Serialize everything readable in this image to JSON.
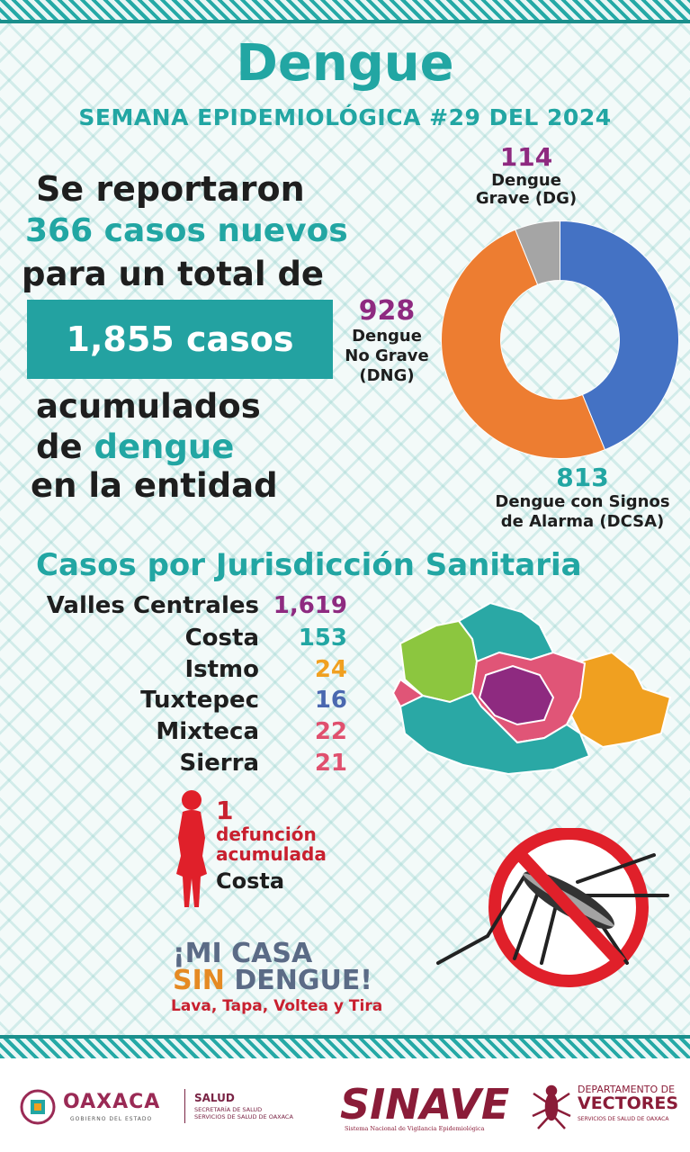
{
  "header": {
    "title": "Dengue",
    "subtitle": "SEMANA EPIDEMIOLÓGICA #29 DEL 2024"
  },
  "summary": {
    "line1": "Se reportaron",
    "line2": "366 casos nuevos",
    "line3": "para un total de",
    "total_box": "1,855 casos",
    "line4": "acumulados",
    "line5_a": "de ",
    "line5_b": "dengue",
    "line6": "en la entidad"
  },
  "chart_data": {
    "type": "pie",
    "style": "donut",
    "categories": [
      "Dengue con Signos de Alarma (DCSA)",
      "Dengue No Grave (DNG)",
      "Dengue Grave (DG)"
    ],
    "values": [
      813,
      928,
      114
    ],
    "colors": [
      "#4472c4",
      "#ed7d31",
      "#a5a5a5"
    ],
    "labels": [
      {
        "value": "813",
        "line1": "Dengue con Signos",
        "line2": "de Alarma (DCSA)",
        "color": "#22a6a3"
      },
      {
        "value": "928",
        "line1": "Dengue",
        "line2": "No Grave",
        "line3": "(DNG)",
        "color": "#8e2a80"
      },
      {
        "value": "114",
        "line1": "Dengue",
        "line2": "Grave (DG)",
        "color": "#8e2a80"
      }
    ]
  },
  "jurisdicciones": {
    "title": "Casos por Jurisdicción Sanitaria",
    "rows": [
      {
        "name": "Valles Centrales",
        "value": "1,619",
        "color": "#8e2a80"
      },
      {
        "name": "Costa",
        "value": "153",
        "color": "#22a6a3"
      },
      {
        "name": "Istmo",
        "value": "24",
        "color": "#f0a020"
      },
      {
        "name": "Tuxtepec",
        "value": "16",
        "color": "#4a68b0"
      },
      {
        "name": "Mixteca",
        "value": "22",
        "color": "#e0506e"
      },
      {
        "name": "Sierra",
        "value": "21",
        "color": "#e0506e"
      }
    ],
    "map_colors": {
      "mixteca": "#8cc63f",
      "costa": "#2aa8a5",
      "valles": "#8e2a80",
      "sierra": "#e05577",
      "istmo": "#f0a020",
      "tuxtepec": "#2aa8a5"
    }
  },
  "defuncion": {
    "number": "1",
    "line1": "defunción",
    "line2": "acumulada",
    "place": "Costa"
  },
  "slogan": {
    "line1": "¡MI CASA",
    "line2_a": "SIN ",
    "line2_b": "DENGUE!",
    "line3": "Lava, Tapa, Voltea y Tira"
  },
  "footer": {
    "oaxaca": "OAXACA",
    "oaxaca_sub": "GOBIERNO DEL ESTADO",
    "salud": "SALUD",
    "salud_sub1": "SECRETARÍA DE SALUD",
    "salud_sub2": "SERVICIOS DE SALUD DE OAXACA",
    "sinave": "SINAVE",
    "sinave_sub": "Sistema Nacional de Vigilancia Epidemiológica",
    "dept": "DEPARTAMENTO DE",
    "vectores": "VECTORES",
    "vectores_sub": "SERVICIOS DE SALUD DE OAXACA"
  }
}
